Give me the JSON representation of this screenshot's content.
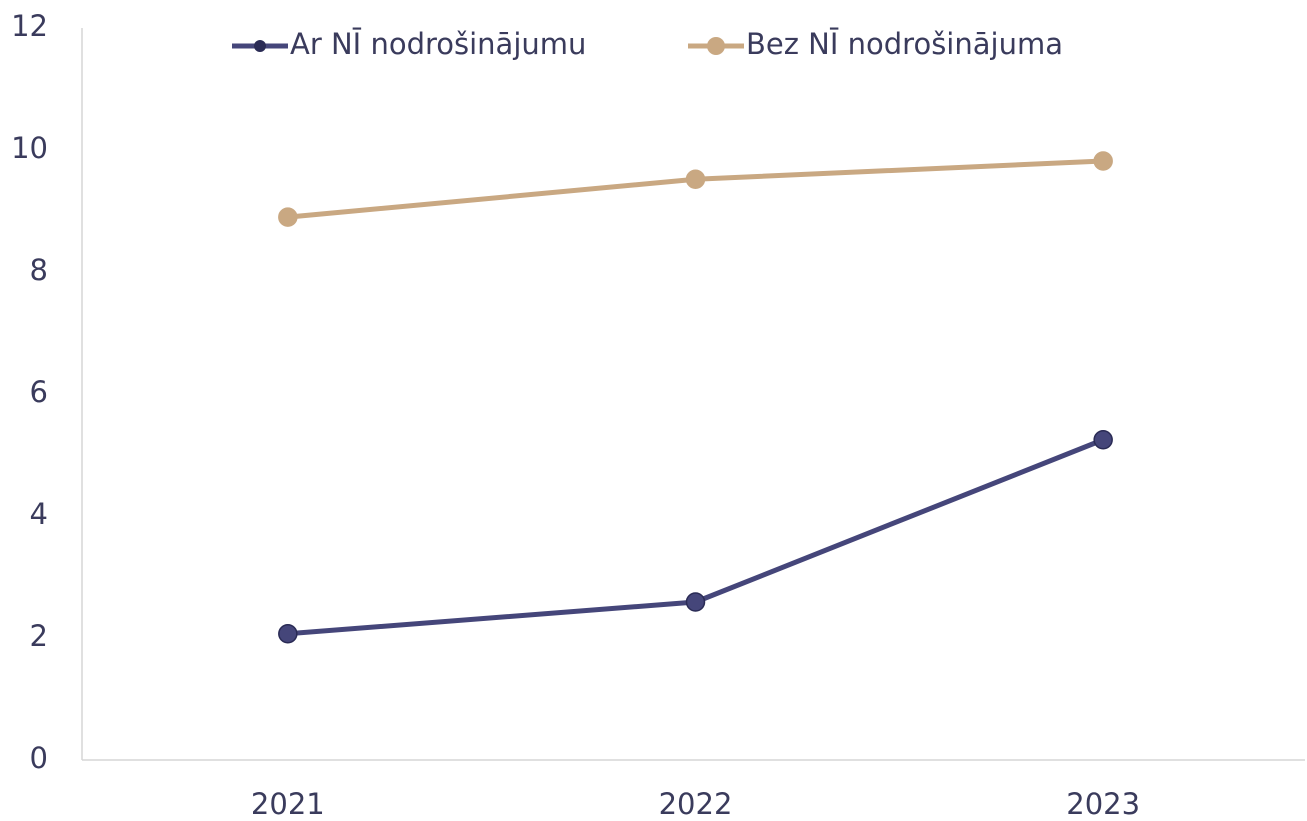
{
  "chart_data": {
    "type": "line",
    "categories": [
      "2021",
      "2022",
      "2023"
    ],
    "series": [
      {
        "name": "Ar NĪ nodrošinājumu",
        "color": "#45467a",
        "values": [
          2.07,
          2.59,
          5.25
        ]
      },
      {
        "name": "Bez NĪ nodrošinājuma",
        "color": "#c9a882",
        "values": [
          8.9,
          9.52,
          9.82
        ]
      }
    ],
    "ylim": [
      0,
      12
    ],
    "yticks": [
      0,
      2,
      4,
      6,
      8,
      10,
      12
    ],
    "grid": false,
    "legend": "top"
  }
}
